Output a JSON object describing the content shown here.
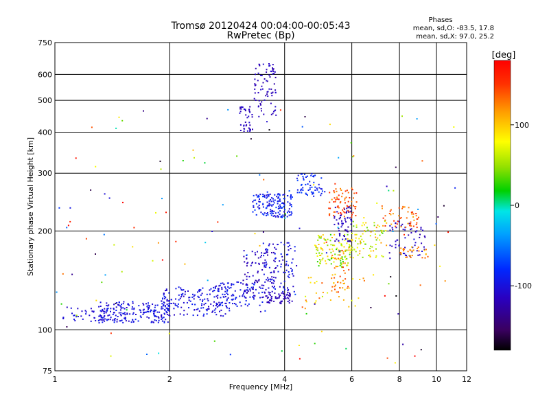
{
  "chart_data": {
    "type": "scatter",
    "title": "Tromsø 20120424 00:04:00-00:05:43",
    "subtitle": "RwPretec (Bp)",
    "xlabel": "Frequency [MHz]",
    "ylabel": "Stationary phase Virtual Height [km]",
    "x_scale": "log",
    "y_scale": "log",
    "xlim": [
      1,
      12
    ],
    "ylim": [
      75,
      750
    ],
    "x_ticks": [
      1,
      2,
      4,
      6,
      8,
      10,
      12
    ],
    "y_ticks": [
      75,
      100,
      200,
      300,
      400,
      500,
      600,
      750
    ],
    "x_gridlines": [
      2,
      4,
      6,
      8,
      10
    ],
    "y_gridlines": [
      100,
      200,
      300,
      400,
      500,
      600
    ],
    "grid": true,
    "stats_header": "Phases",
    "stats_lines": [
      "mean, sd,O:  -83.5, 17.8",
      "mean, sd,X:  97.0, 25.2"
    ],
    "colorbar": {
      "label": "[deg]",
      "range": [
        -180,
        180
      ],
      "ticks": [
        100,
        0,
        -100
      ],
      "placement": "right"
    },
    "clusters": [
      {
        "f": [
          1.05,
          1.4
        ],
        "h": [
          105,
          118
        ],
        "phase": [
          -115,
          -95
        ],
        "count": 45
      },
      {
        "f": [
          1.3,
          2.0
        ],
        "h": [
          105,
          122
        ],
        "phase": [
          -115,
          -85
        ],
        "count": 200
      },
      {
        "f": [
          1.9,
          2.9
        ],
        "h": [
          110,
          135
        ],
        "phase": [
          -115,
          -85
        ],
        "count": 170
      },
      {
        "f": [
          2.6,
          3.5
        ],
        "h": [
          118,
          140
        ],
        "phase": [
          -110,
          -80
        ],
        "count": 90
      },
      {
        "f": [
          3.1,
          3.8
        ],
        "h": [
          125,
          175
        ],
        "phase": [
          -125,
          -105
        ],
        "count": 100
      },
      {
        "f": [
          3.6,
          4.2
        ],
        "h": [
          120,
          130
        ],
        "phase": [
          -125,
          -110
        ],
        "count": 50
      },
      {
        "f": [
          3.5,
          4.3
        ],
        "h": [
          130,
          185
        ],
        "phase": [
          -115,
          -85
        ],
        "count": 90
      },
      {
        "f": [
          3.05,
          3.3
        ],
        "h": [
          400,
          480
        ],
        "phase": [
          -125,
          -105
        ],
        "count": 40
      },
      {
        "f": [
          3.3,
          3.8
        ],
        "h": [
          430,
          650
        ],
        "phase": [
          -125,
          -105
        ],
        "count": 80
      },
      {
        "f": [
          3.3,
          4.2
        ],
        "h": [
          220,
          260
        ],
        "phase": [
          -110,
          -70
        ],
        "count": 150
      },
      {
        "f": [
          4.3,
          5.1
        ],
        "h": [
          255,
          300
        ],
        "phase": [
          -100,
          -70
        ],
        "count": 60
      },
      {
        "f": [
          4.8,
          6.0
        ],
        "h": [
          155,
          195
        ],
        "phase": [
          20,
          110
        ],
        "count": 120
      },
      {
        "f": [
          5.2,
          6.2
        ],
        "h": [
          220,
          270
        ],
        "phase": [
          120,
          165
        ],
        "count": 70
      },
      {
        "f": [
          5.3,
          5.9
        ],
        "h": [
          130,
          175
        ],
        "phase": [
          100,
          160
        ],
        "count": 40
      },
      {
        "f": [
          5.4,
          6.0
        ],
        "h": [
          185,
          240
        ],
        "phase": [
          -130,
          -105
        ],
        "count": 60
      },
      {
        "f": [
          6.0,
          7.4
        ],
        "h": [
          165,
          215
        ],
        "phase": [
          30,
          120
        ],
        "count": 80
      },
      {
        "f": [
          7.5,
          9.4
        ],
        "h": [
          165,
          215
        ],
        "phase": [
          -125,
          -100
        ],
        "count": 60
      },
      {
        "f": [
          7.2,
          9.0
        ],
        "h": [
          205,
          240
        ],
        "phase": [
          110,
          160
        ],
        "count": 50
      },
      {
        "f": [
          8.0,
          9.5
        ],
        "h": [
          165,
          180
        ],
        "phase": [
          100,
          140
        ],
        "count": 30
      },
      {
        "f": [
          4.5,
          6.5
        ],
        "h": [
          115,
          145
        ],
        "phase": [
          60,
          140
        ],
        "count": 30
      },
      {
        "f": [
          1.0,
          11.5
        ],
        "h": [
          78,
          500
        ],
        "phase": [
          -180,
          180
        ],
        "count": 140
      }
    ]
  }
}
